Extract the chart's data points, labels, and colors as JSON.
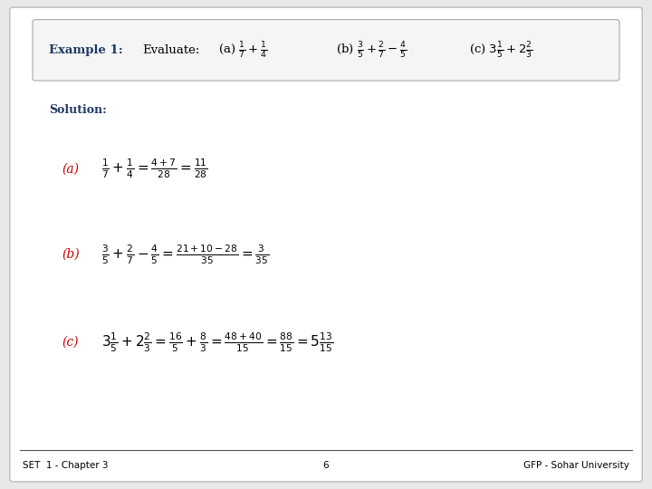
{
  "bg_color": "#e8e8e8",
  "slide_bg": "#ffffff",
  "title_bold_color": "#1f3864",
  "solution_color": "#1f3864",
  "label_color": "#cc0000",
  "body_color": "#000000",
  "footer_left": "SET  1 - Chapter 3",
  "footer_center": "6",
  "footer_right": "GFP - Sohar University"
}
